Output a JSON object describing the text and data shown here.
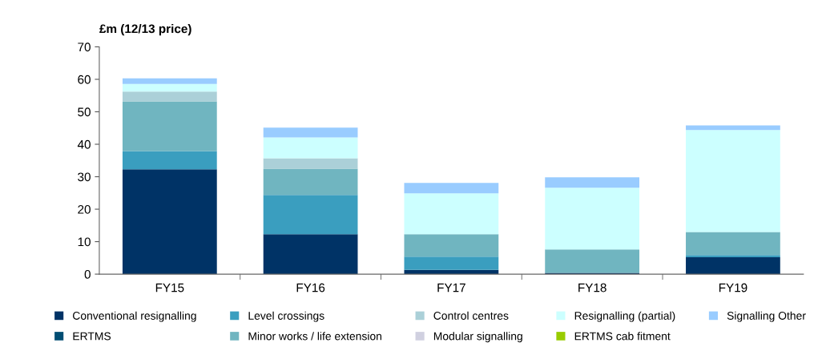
{
  "chart_data": {
    "type": "bar",
    "stacked": true,
    "ylabel": "£m (12/13 price)",
    "categories": [
      "FY15",
      "FY16",
      "FY17",
      "FY18",
      "FY19"
    ],
    "ylim": [
      0,
      70
    ],
    "yticks": [
      0,
      10,
      20,
      30,
      40,
      50,
      60,
      70
    ],
    "grid": false,
    "legend": "bottom",
    "series": [
      {
        "name": "Conventional resignalling",
        "color": "#003366",
        "values": [
          32.3,
          12.3,
          1.3,
          0.4,
          5.2
        ]
      },
      {
        "name": "ERTMS",
        "color": "#004d73",
        "values": [
          0,
          0,
          0,
          0,
          0
        ]
      },
      {
        "name": "Level crossings",
        "color": "#3a9ebf",
        "values": [
          5.6,
          12.1,
          4.1,
          0,
          0.7
        ]
      },
      {
        "name": "Minor works / life extension",
        "color": "#70b5c0",
        "values": [
          15.3,
          8.1,
          6.9,
          7.2,
          7.1
        ]
      },
      {
        "name": "Control centres",
        "color": "#abd0d8",
        "values": [
          3.0,
          3.2,
          0,
          0,
          0
        ]
      },
      {
        "name": "Modular signalling",
        "color": "#d0d0e0",
        "values": [
          0,
          0,
          0,
          0,
          0
        ]
      },
      {
        "name": "Resignalling (partial)",
        "color": "#ccffff",
        "values": [
          2.4,
          6.4,
          12.6,
          19.0,
          31.4
        ]
      },
      {
        "name": "ERTMS cab fitment",
        "color": "#99cc00",
        "values": [
          0,
          0,
          0,
          0,
          0
        ]
      },
      {
        "name": "Signalling Other",
        "color": "#99ccff",
        "values": [
          1.7,
          3.0,
          3.2,
          3.2,
          1.4
        ]
      }
    ]
  }
}
